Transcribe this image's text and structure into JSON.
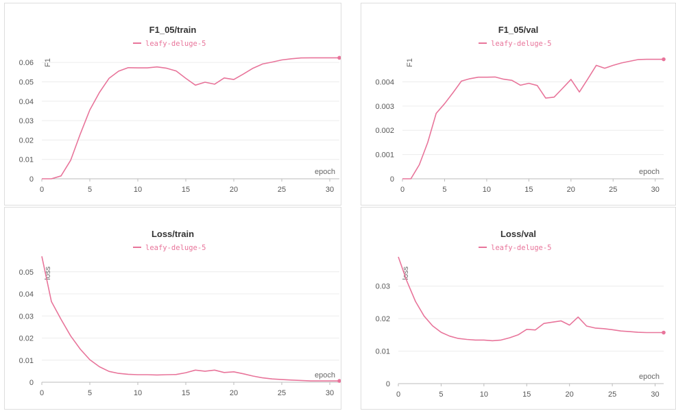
{
  "series_color": "#e8749a",
  "chart_data": [
    {
      "type": "line",
      "title": "F1_05/train",
      "xlabel": "epoch",
      "ylabel": "F1",
      "legend": "leafy-deluge-5",
      "legend_position": "top-center",
      "grid": true,
      "xlim": [
        0,
        31
      ],
      "ylim": [
        0,
        0.065
      ],
      "xticks": [
        0,
        5,
        10,
        15,
        20,
        25,
        30
      ],
      "yticks": [
        0,
        0.01,
        0.02,
        0.03,
        0.04,
        0.05,
        0.06
      ],
      "ytick_labels": [
        "0",
        "0.01",
        "0.02",
        "0.03",
        "0.04",
        "0.05",
        "0.06"
      ],
      "series": [
        {
          "name": "leafy-deluge-5",
          "x": [
            0,
            1,
            2,
            3,
            4,
            5,
            6,
            7,
            8,
            9,
            10,
            11,
            12,
            13,
            14,
            15,
            16,
            17,
            18,
            19,
            20,
            21,
            22,
            23,
            24,
            25,
            26,
            27,
            28,
            29,
            30,
            31
          ],
          "y": [
            0,
            0,
            0.0015,
            0.0095,
            0.023,
            0.0355,
            0.0445,
            0.0518,
            0.0555,
            0.0573,
            0.0572,
            0.0572,
            0.0577,
            0.057,
            0.0556,
            0.0518,
            0.0483,
            0.0498,
            0.0488,
            0.052,
            0.0512,
            0.054,
            0.057,
            0.0592,
            0.0602,
            0.0613,
            0.0619,
            0.0623,
            0.0624,
            0.0624,
            0.0624,
            0.0624
          ]
        }
      ]
    },
    {
      "type": "line",
      "title": "F1_05/val",
      "xlabel": "epoch",
      "ylabel": "F1",
      "legend": "leafy-deluge-5",
      "legend_position": "top-center",
      "grid": true,
      "xlim": [
        0,
        31
      ],
      "ylim": [
        0,
        0.0052
      ],
      "xticks": [
        0,
        5,
        10,
        15,
        20,
        25,
        30
      ],
      "yticks": [
        0,
        0.001,
        0.002,
        0.003,
        0.004
      ],
      "ytick_labels": [
        "0",
        "0.001",
        "0.002",
        "0.003",
        "0.004"
      ],
      "series": [
        {
          "name": "leafy-deluge-5",
          "x": [
            0,
            1,
            2,
            3,
            4,
            5,
            6,
            7,
            8,
            9,
            10,
            11,
            12,
            13,
            14,
            15,
            16,
            17,
            18,
            19,
            20,
            21,
            22,
            23,
            24,
            25,
            26,
            27,
            28,
            29,
            30,
            31
          ],
          "y": [
            0,
            0,
            0.00058,
            0.0015,
            0.0027,
            0.0031,
            0.00355,
            0.00403,
            0.00413,
            0.00419,
            0.00419,
            0.0042,
            0.00411,
            0.00406,
            0.00386,
            0.00394,
            0.00385,
            0.00333,
            0.00337,
            0.00373,
            0.0041,
            0.00358,
            0.00412,
            0.00468,
            0.00456,
            0.00468,
            0.00478,
            0.00485,
            0.00492,
            0.00493,
            0.00493,
            0.00493
          ]
        }
      ]
    },
    {
      "type": "line",
      "title": "Loss/train",
      "xlabel": "epoch",
      "ylabel": "loss",
      "legend": "leafy-deluge-5",
      "legend_position": "top-center",
      "grid": true,
      "xlim": [
        0,
        31
      ],
      "ylim": [
        0,
        0.058
      ],
      "xticks": [
        0,
        5,
        10,
        15,
        20,
        25,
        30
      ],
      "yticks": [
        0,
        0.01,
        0.02,
        0.03,
        0.04,
        0.05
      ],
      "ytick_labels": [
        "0",
        "0.01",
        "0.02",
        "0.03",
        "0.04",
        "0.05"
      ],
      "series": [
        {
          "name": "leafy-deluge-5",
          "x": [
            0,
            1,
            2,
            3,
            4,
            5,
            6,
            7,
            8,
            9,
            10,
            11,
            12,
            13,
            14,
            15,
            16,
            17,
            18,
            19,
            20,
            21,
            22,
            23,
            24,
            25,
            26,
            27,
            28,
            29,
            30,
            31
          ],
          "y": [
            0.057,
            0.0365,
            0.0285,
            0.021,
            0.015,
            0.0102,
            0.007,
            0.0049,
            0.004,
            0.0036,
            0.0034,
            0.0034,
            0.0033,
            0.0034,
            0.0035,
            0.0043,
            0.0055,
            0.005,
            0.0055,
            0.0044,
            0.0047,
            0.0038,
            0.0028,
            0.002,
            0.0015,
            0.0012,
            0.001,
            0.0008,
            0.0006,
            0.0006,
            0.0006,
            0.0006
          ]
        }
      ]
    },
    {
      "type": "line",
      "title": "Loss/val",
      "xlabel": "epoch",
      "ylabel": "loss",
      "legend": "leafy-deluge-5",
      "legend_position": "top-center",
      "grid": true,
      "xlim": [
        0,
        31
      ],
      "ylim": [
        0,
        0.039
      ],
      "xticks": [
        0,
        5,
        10,
        15,
        20,
        25,
        30
      ],
      "yticks": [
        0,
        0.01,
        0.02,
        0.03
      ],
      "ytick_labels": [
        "0",
        "0.01",
        "0.02",
        "0.03"
      ],
      "series": [
        {
          "name": "leafy-deluge-5",
          "x": [
            0,
            1,
            2,
            3,
            4,
            5,
            6,
            7,
            8,
            9,
            10,
            11,
            12,
            13,
            14,
            15,
            16,
            17,
            18,
            19,
            20,
            21,
            22,
            23,
            24,
            25,
            26,
            27,
            28,
            29,
            30,
            31
          ],
          "y": [
            0.039,
            0.0315,
            0.0253,
            0.0208,
            0.0178,
            0.0158,
            0.0146,
            0.0139,
            0.0136,
            0.0134,
            0.0134,
            0.0132,
            0.0134,
            0.0141,
            0.015,
            0.0167,
            0.0165,
            0.0185,
            0.0189,
            0.0193,
            0.018,
            0.0205,
            0.0177,
            0.0171,
            0.0169,
            0.0166,
            0.0162,
            0.016,
            0.0158,
            0.0157,
            0.0157,
            0.0157
          ]
        }
      ]
    }
  ]
}
